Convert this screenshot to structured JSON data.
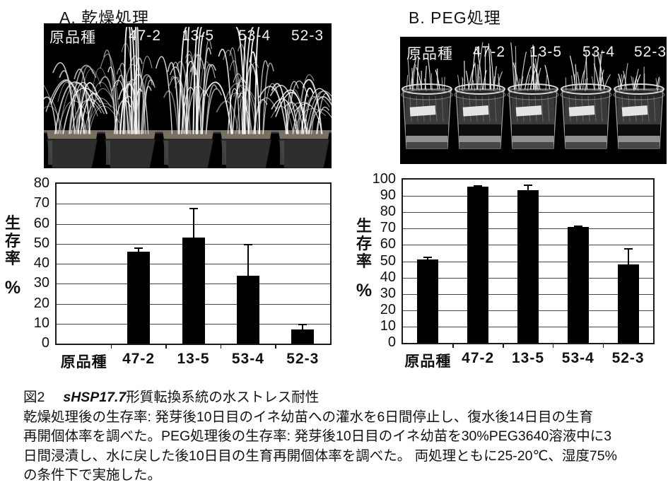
{
  "panels": {
    "a": {
      "title": "A. 乾燥処理",
      "photo_labels": [
        "原品種",
        "47-2",
        "13-5",
        "53-4",
        "52-3"
      ]
    },
    "b": {
      "title": "B. PEG処理",
      "photo_labels": [
        "原品種",
        "47-2",
        "13-5",
        "53-4",
        "52-3"
      ]
    }
  },
  "chart_data": [
    {
      "type": "bar",
      "title": "A. 乾燥処理 生存率",
      "categories": [
        "原品種",
        "47-2",
        "13-5",
        "53-4",
        "52-3"
      ],
      "values": [
        0,
        46,
        53,
        34,
        7
      ],
      "error_plus": [
        0,
        2,
        15,
        16,
        3
      ],
      "xlabel": "",
      "ylabel": "生存率",
      "ylabel_unit": "%",
      "ylim": [
        0,
        80
      ],
      "ytick_step": 10,
      "grid": true,
      "legend_position": "none",
      "bar_color": "#000000"
    },
    {
      "type": "bar",
      "title": "B. PEG処理 生存率",
      "categories": [
        "原品種",
        "47-2",
        "13-5",
        "53-4",
        "52-3"
      ],
      "values": [
        51,
        95.5,
        93.5,
        71,
        48
      ],
      "error_plus": [
        2,
        1,
        3.5,
        1,
        10
      ],
      "xlabel": "",
      "ylabel": "生存率",
      "ylabel_unit": "%",
      "ylim": [
        0,
        100
      ],
      "ytick_step": 10,
      "grid": true,
      "legend_position": "none",
      "bar_color": "#000000"
    }
  ],
  "caption": {
    "fig_no": "図2",
    "title_italic": "sHSP17.7",
    "title_rest": "形質転換系統の水ストレス耐性",
    "lines": [
      "乾燥処理後の生存率: 発芽後10日目のイネ幼苗への灌水を6日間停止し、復水後14日目の生育",
      "再開個体率を調べた。PEG処理後の生存率: 発芽後10日目のイネ幼苗を30%PEG3640溶液中に3",
      "日間浸漬し、水に戻した後10日目の生育再開個体率を調べた。 両処理ともに25-20℃、湿度75%",
      "の条件下で実施した。"
    ]
  },
  "colors": {
    "bar": "#000000",
    "grid": "#474747",
    "axis": "#1a1a1a",
    "photo_background": "#000000",
    "photo_text": "#f2f2f2"
  }
}
